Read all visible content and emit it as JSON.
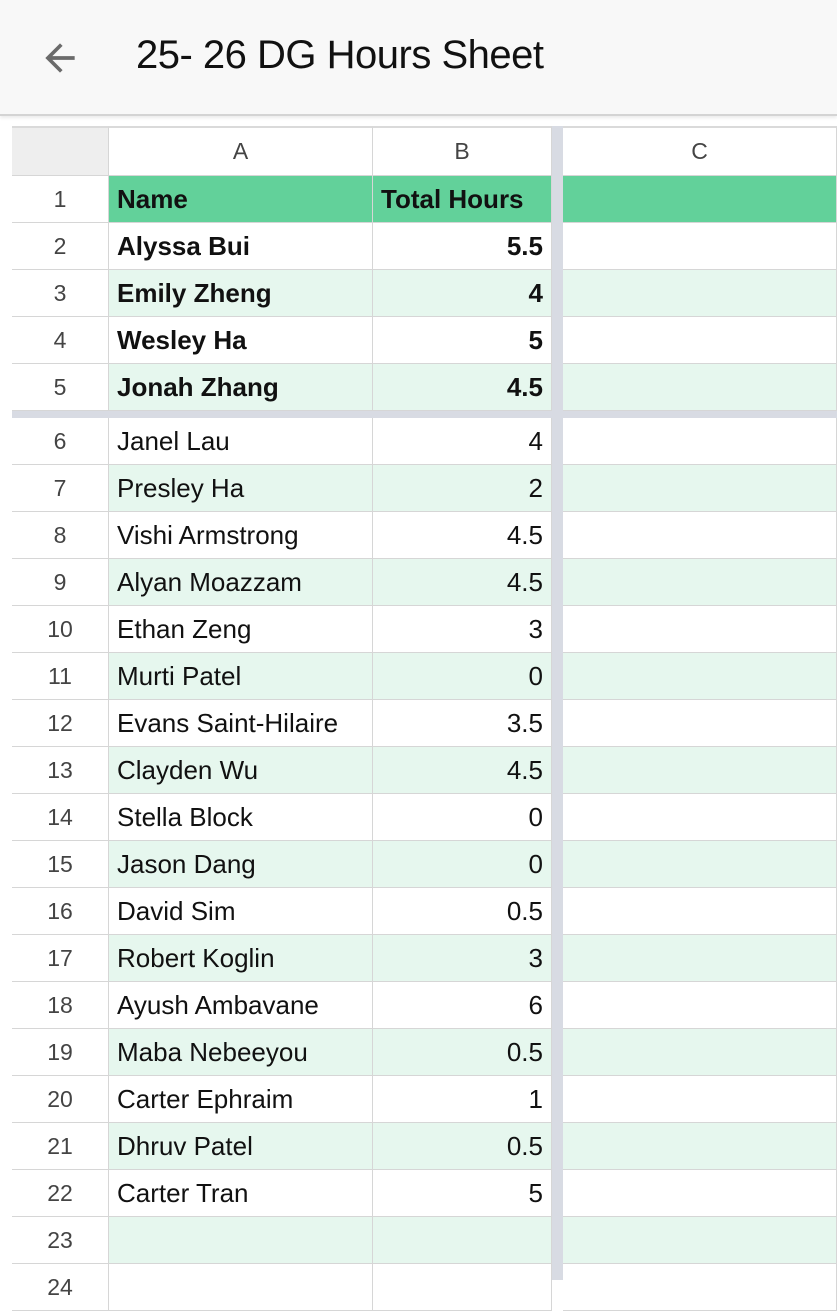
{
  "app": {
    "title": "25- 26 DG Hours Sheet",
    "back_icon": "arrow-left-icon"
  },
  "colors": {
    "header_fill": "#62d19a",
    "band_fill": "#e6f7ee",
    "freeze_bar": "#d8dbe3"
  },
  "columns": [
    "A",
    "B",
    "C"
  ],
  "header_row": {
    "row": "1",
    "name": "Name",
    "hours": "Total Hours"
  },
  "rows": [
    {
      "row": "2",
      "name": "Alyssa Bui",
      "hours": "5.5",
      "bold": true
    },
    {
      "row": "3",
      "name": "Emily Zheng",
      "hours": "4",
      "bold": true
    },
    {
      "row": "4",
      "name": "Wesley Ha",
      "hours": "5",
      "bold": true
    },
    {
      "row": "5",
      "name": "Jonah Zhang",
      "hours": "4.5",
      "bold": true
    },
    {
      "row": "6",
      "name": "Janel Lau",
      "hours": "4"
    },
    {
      "row": "7",
      "name": "Presley Ha",
      "hours": "2"
    },
    {
      "row": "8",
      "name": "Vishi Armstrong",
      "hours": "4.5"
    },
    {
      "row": "9",
      "name": "Alyan Moazzam",
      "hours": "4.5"
    },
    {
      "row": "10",
      "name": "Ethan Zeng",
      "hours": "3"
    },
    {
      "row": "11",
      "name": "Murti Patel",
      "hours": "0"
    },
    {
      "row": "12",
      "name": "Evans Saint-Hilaire",
      "hours": "3.5"
    },
    {
      "row": "13",
      "name": "Clayden Wu",
      "hours": "4.5"
    },
    {
      "row": "14",
      "name": "Stella Block",
      "hours": "0"
    },
    {
      "row": "15",
      "name": "Jason Dang",
      "hours": "0"
    },
    {
      "row": "16",
      "name": "David Sim",
      "hours": "0.5"
    },
    {
      "row": "17",
      "name": "Robert Koglin",
      "hours": "3"
    },
    {
      "row": "18",
      "name": "Ayush Ambavane",
      "hours": "6"
    },
    {
      "row": "19",
      "name": "Maba Nebeeyou",
      "hours": "0.5"
    },
    {
      "row": "20",
      "name": "Carter Ephraim",
      "hours": "1"
    },
    {
      "row": "21",
      "name": "Dhruv Patel",
      "hours": "0.5"
    },
    {
      "row": "22",
      "name": "Carter Tran",
      "hours": "5"
    },
    {
      "row": "23",
      "name": "",
      "hours": ""
    },
    {
      "row": "24",
      "name": "",
      "hours": ""
    }
  ]
}
